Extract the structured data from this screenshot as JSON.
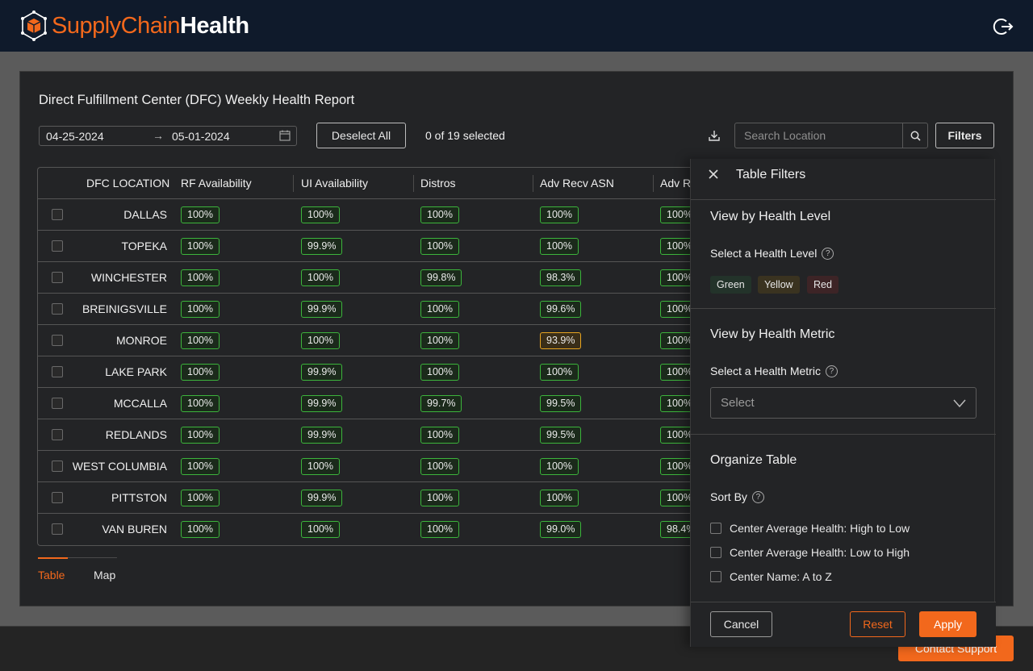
{
  "app": {
    "name_part1": "SupplyChain",
    "name_part2": "Health",
    "logo_icon": "hexagon-cube-logo",
    "logout_icon": "logout-icon"
  },
  "report": {
    "title": "Direct Fulfillment Center (DFC) Weekly Health Report",
    "date_start": "04-25-2024",
    "date_arrow": "→",
    "date_end": "05-01-2024",
    "deselect_label": "Deselect All",
    "selected_count": "0 of 19 selected",
    "search_placeholder": "Search Location",
    "filters_label": "Filters"
  },
  "table": {
    "columns": [
      "DFC LOCATION",
      "RF Availability",
      "UI Availability",
      "Distros",
      "Adv Recv ASN",
      "Adv R"
    ],
    "rows": [
      {
        "location": "DALLAS",
        "values": [
          "100%",
          "100%",
          "100%",
          "100%",
          "100%"
        ]
      },
      {
        "location": "TOPEKA",
        "values": [
          "100%",
          "99.9%",
          "100%",
          "100%",
          "100%"
        ]
      },
      {
        "location": "WINCHESTER",
        "values": [
          "100%",
          "100%",
          "99.8%",
          "98.3%",
          "100%"
        ]
      },
      {
        "location": "BREINIGSVILLE",
        "values": [
          "100%",
          "99.9%",
          "100%",
          "99.6%",
          "100%"
        ]
      },
      {
        "location": "MONROE",
        "values": [
          "100%",
          "100%",
          "100%",
          "93.9%",
          "100%"
        ]
      },
      {
        "location": "LAKE PARK",
        "values": [
          "100%",
          "99.9%",
          "100%",
          "100%",
          "100%"
        ]
      },
      {
        "location": "MCCALLA",
        "values": [
          "100%",
          "99.9%",
          "99.7%",
          "99.5%",
          "100%"
        ]
      },
      {
        "location": "REDLANDS",
        "values": [
          "100%",
          "99.9%",
          "100%",
          "99.5%",
          "100%"
        ]
      },
      {
        "location": "WEST COLUMBIA",
        "values": [
          "100%",
          "100%",
          "100%",
          "100%",
          "100%"
        ]
      },
      {
        "location": "PITTSTON",
        "values": [
          "100%",
          "99.9%",
          "100%",
          "100%",
          "100%"
        ]
      },
      {
        "location": "VAN BUREN",
        "values": [
          "100%",
          "100%",
          "100%",
          "99.0%",
          "98.4%"
        ]
      }
    ],
    "warn_cells": [
      [
        4,
        3
      ]
    ]
  },
  "tabs": {
    "table": "Table",
    "map": "Map"
  },
  "filters": {
    "title": "Table Filters",
    "health_level_title": "View by Health Level",
    "health_level_label": "Select a Health Level",
    "levels": [
      "Green",
      "Yellow",
      "Red"
    ],
    "metric_title": "View by Health Metric",
    "metric_label": "Select a Health Metric",
    "metric_placeholder": "Select",
    "organize_title": "Organize Table",
    "sort_label": "Sort By",
    "sort_options": [
      "Center Average Health: High to Low",
      "Center Average Health: Low to High",
      "Center Name: A to Z"
    ],
    "cancel": "Cancel",
    "reset": "Reset",
    "apply": "Apply",
    "help": "?"
  },
  "footer": {
    "contact": "Contact Support"
  },
  "colors": {
    "accent": "#f2681c",
    "good": "#3cb43c",
    "warn": "#e8a521",
    "topbar": "#0f1a2b"
  }
}
